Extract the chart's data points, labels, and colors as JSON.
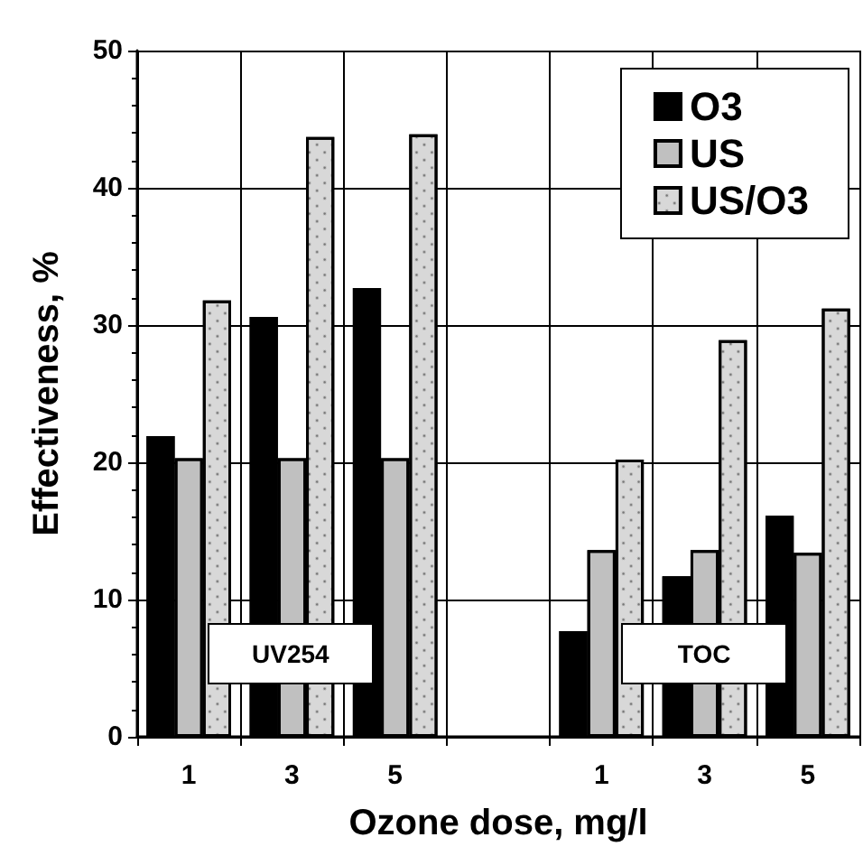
{
  "chart_data": {
    "type": "bar",
    "xlabel": "Ozone dose, mg/l",
    "ylabel": "Effectiveness, %",
    "categories": [
      "1",
      "3",
      "5",
      null,
      "1",
      "3",
      "5"
    ],
    "series": [
      {
        "name": "O3",
        "color": "#000000",
        "values": [
          21.9,
          30.6,
          32.7,
          null,
          7.7,
          11.7,
          16.1
        ]
      },
      {
        "name": "US",
        "color": "#c0c0c0",
        "values": [
          20.3,
          20.3,
          20.3,
          null,
          13.6,
          13.6,
          13.4
        ]
      },
      {
        "name": "US/O3",
        "color": "#d8d8d8",
        "values": [
          31.8,
          43.7,
          43.9,
          null,
          20.2,
          28.9,
          31.2
        ]
      }
    ],
    "ylim": [
      0,
      50
    ],
    "yticks": [
      0,
      10,
      20,
      30,
      40,
      50
    ],
    "grid": true,
    "legend": "top right",
    "annotations": [
      "UV254",
      "TOC"
    ]
  }
}
